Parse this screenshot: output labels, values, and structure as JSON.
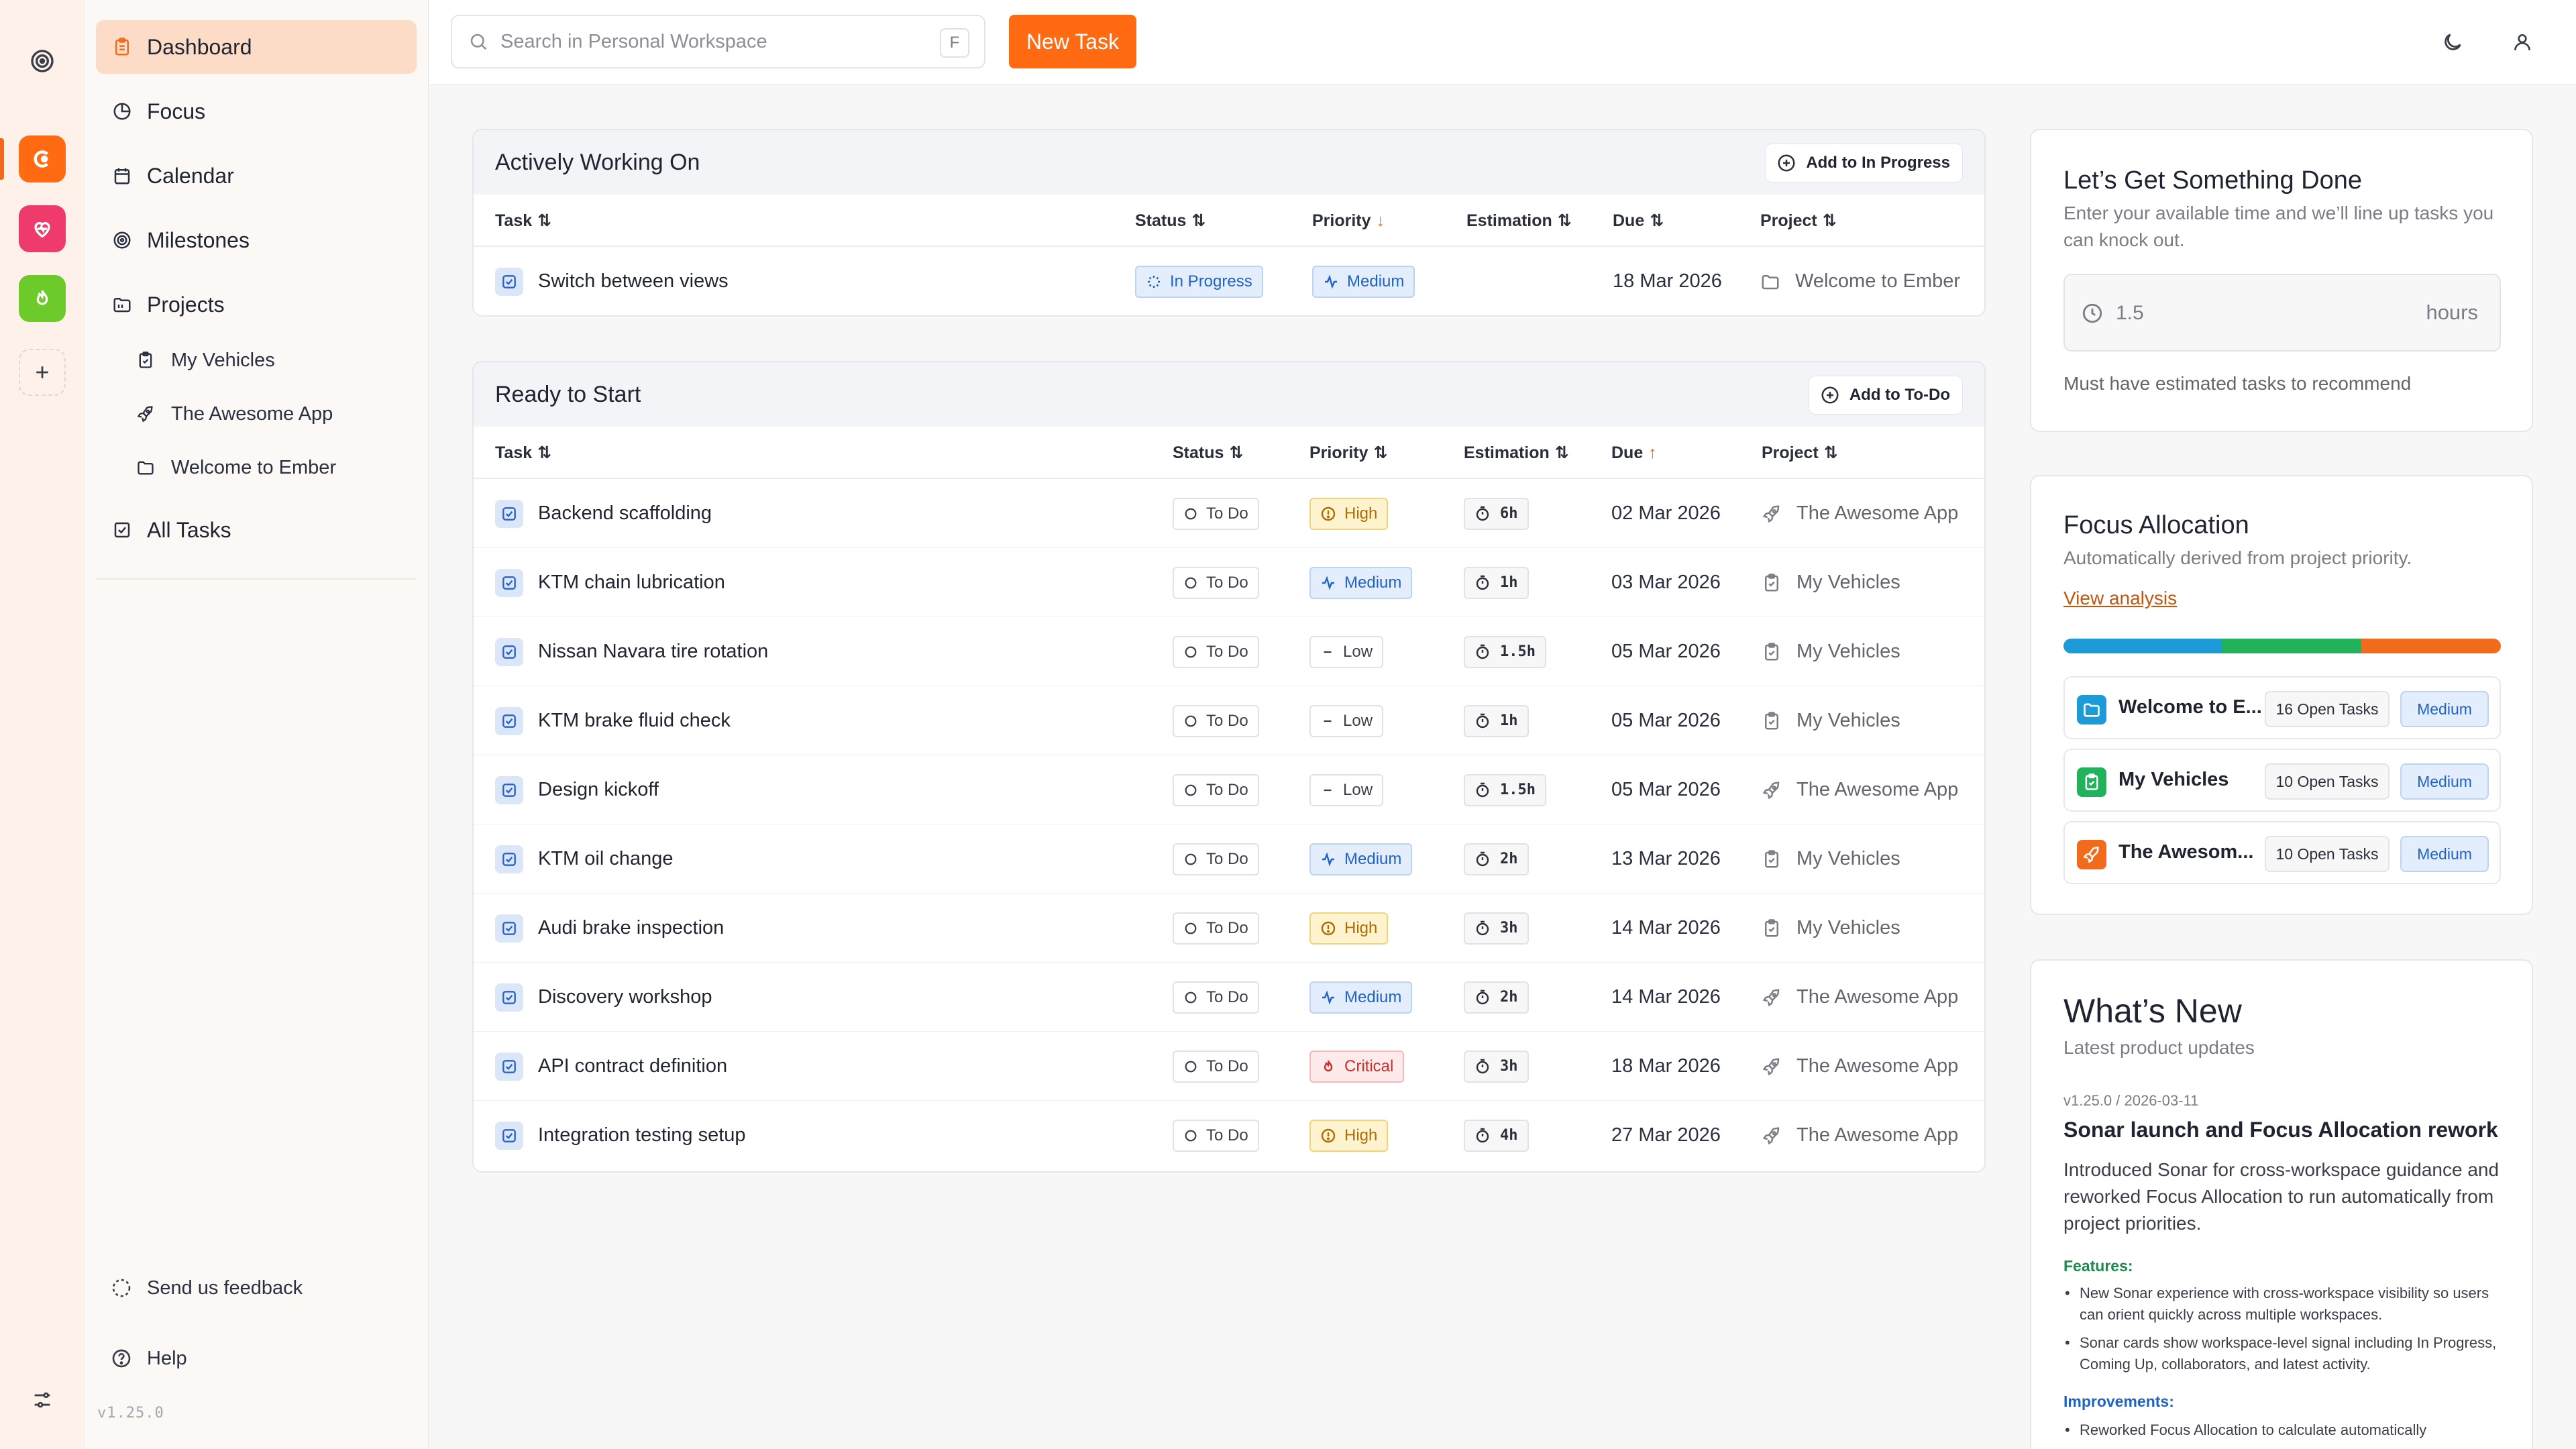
{
  "nav": {
    "items": [
      {
        "label": "Dashboard",
        "icon": "clipboard-icon"
      },
      {
        "label": "Focus",
        "icon": "pie-chart-icon"
      },
      {
        "label": "Calendar",
        "icon": "calendar-icon"
      },
      {
        "label": "Milestones",
        "icon": "target-icon"
      },
      {
        "label": "Projects",
        "icon": "folder-icon"
      }
    ],
    "projects": [
      {
        "label": "My Vehicles",
        "icon": "clipboard-icon"
      },
      {
        "label": "The Awesome App",
        "icon": "rocket-icon"
      },
      {
        "label": "Welcome to Ember",
        "icon": "folder-icon"
      }
    ],
    "all_tasks": "All Tasks",
    "feedback": "Send us feedback",
    "help": "Help",
    "version": "v1.25.0"
  },
  "topbar": {
    "search_placeholder": "Search in Personal Workspace",
    "search_shortcut": "F",
    "new_task": "New Task"
  },
  "active": {
    "title": "Actively Working On",
    "add_label": "Add to In Progress",
    "columns": {
      "task": "Task",
      "status": "Status",
      "priority": "Priority",
      "estimation": "Estimation",
      "due": "Due",
      "project": "Project"
    },
    "rows": [
      {
        "task": "Switch between views",
        "status": "In Progress",
        "priority": "Medium",
        "estimation": "",
        "due": "18 Mar 2026",
        "project": "Welcome to Ember"
      }
    ]
  },
  "ready": {
    "title": "Ready to Start",
    "add_label": "Add to To-Do",
    "columns": {
      "task": "Task",
      "status": "Status",
      "priority": "Priority",
      "estimation": "Estimation",
      "due": "Due",
      "project": "Project"
    },
    "rows": [
      {
        "task": "Backend scaffolding",
        "status": "To Do",
        "priority": "High",
        "estimation": "6h",
        "due": "02 Mar 2026",
        "project": "The Awesome App"
      },
      {
        "task": "KTM chain lubrication",
        "status": "To Do",
        "priority": "Medium",
        "estimation": "1h",
        "due": "03 Mar 2026",
        "project": "My Vehicles"
      },
      {
        "task": "Nissan Navara tire rotation",
        "status": "To Do",
        "priority": "Low",
        "estimation": "1.5h",
        "due": "05 Mar 2026",
        "project": "My Vehicles"
      },
      {
        "task": "KTM brake fluid check",
        "status": "To Do",
        "priority": "Low",
        "estimation": "1h",
        "due": "05 Mar 2026",
        "project": "My Vehicles"
      },
      {
        "task": "Design kickoff",
        "status": "To Do",
        "priority": "Low",
        "estimation": "1.5h",
        "due": "05 Mar 2026",
        "project": "The Awesome App"
      },
      {
        "task": "KTM oil change",
        "status": "To Do",
        "priority": "Medium",
        "estimation": "2h",
        "due": "13 Mar 2026",
        "project": "My Vehicles"
      },
      {
        "task": "Audi brake inspection",
        "status": "To Do",
        "priority": "High",
        "estimation": "3h",
        "due": "14 Mar 2026",
        "project": "My Vehicles"
      },
      {
        "task": "Discovery workshop",
        "status": "To Do",
        "priority": "Medium",
        "estimation": "2h",
        "due": "14 Mar 2026",
        "project": "The Awesome App"
      },
      {
        "task": "API contract definition",
        "status": "To Do",
        "priority": "Critical",
        "estimation": "3h",
        "due": "18 Mar 2026",
        "project": "The Awesome App"
      },
      {
        "task": "Integration testing setup",
        "status": "To Do",
        "priority": "High",
        "estimation": "4h",
        "due": "27 Mar 2026",
        "project": "The Awesome App"
      }
    ]
  },
  "get_done": {
    "title": "Let’s Get Something Done",
    "subtitle": "Enter your available time and we’ll line up tasks you can knock out.",
    "hours_value": "1.5",
    "hours_unit": "hours",
    "note": "Must have estimated tasks to recommend"
  },
  "focus": {
    "title": "Focus Allocation",
    "subtitle": "Automatically derived from project priority.",
    "link": "View analysis",
    "bar_segments": [
      {
        "color": "#1d9bd8",
        "share": 0.3611
      },
      {
        "color": "#22b25b",
        "share": 0.3194
      },
      {
        "color": "#f26a1c",
        "share": 0.3195
      }
    ],
    "projects": [
      {
        "name": "Welcome to E...",
        "open": "16 Open Tasks",
        "priority": "Medium",
        "color": "#1d9bd8",
        "icon": "folder-icon"
      },
      {
        "name": "My Vehicles",
        "open": "10 Open Tasks",
        "priority": "Medium",
        "color": "#22b25b",
        "icon": "clipboard-icon"
      },
      {
        "name": "The Awesom...",
        "open": "10 Open Tasks",
        "priority": "Medium",
        "color": "#f26a1c",
        "icon": "rocket-icon"
      }
    ]
  },
  "whats_new": {
    "title": "What’s New",
    "subtitle": "Latest product updates",
    "version_line": "v1.25.0 / 2026-03-11",
    "headline": "Sonar launch and Focus Allocation rework",
    "body": "Introduced Sonar for cross-workspace guidance and reworked Focus Allocation to run automatically from project priorities.",
    "features_label": "Features:",
    "features": [
      "New Sonar experience with cross-workspace visibility so users can orient quickly across multiple workspaces.",
      "Sonar cards show workspace-level signal including In Progress, Coming Up, collaborators, and latest activity."
    ],
    "improvements_label": "Improvements:",
    "improvements": [
      "Reworked Focus Allocation to calculate automatically"
    ]
  },
  "colors": {
    "accent": "#ff6a13",
    "medium": "#2063c7",
    "high": "#b36a00",
    "critical": "#d22b2b"
  }
}
